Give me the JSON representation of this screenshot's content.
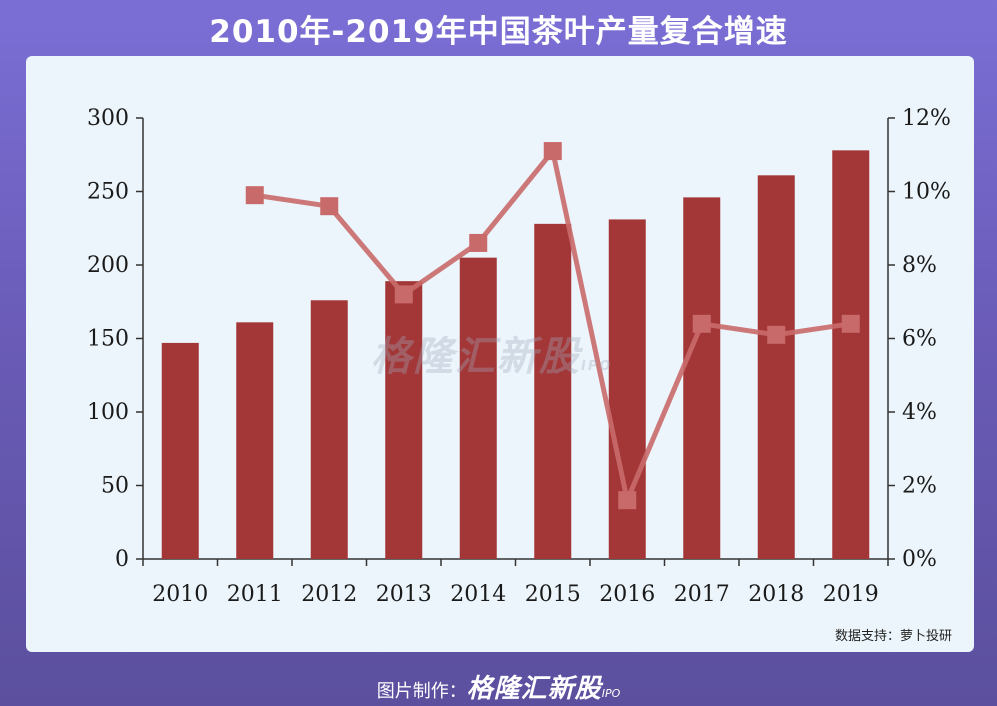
{
  "page_title": "2010年-2019年中国茶叶产量复合增速",
  "source_note": "数据支持：萝卜投研",
  "watermark": {
    "brand": "格隆汇新股",
    "suffix": "IPO"
  },
  "footer": {
    "label": "图片制作：",
    "brand": "格隆汇新股",
    "suffix": "IPO"
  },
  "colors": {
    "bar": "#a33636",
    "line": "#c96a6a"
  },
  "chart_data": {
    "type": "bar",
    "title": "",
    "categories": [
      "2010",
      "2011",
      "2012",
      "2013",
      "2014",
      "2015",
      "2016",
      "2017",
      "2018",
      "2019"
    ],
    "series": [
      {
        "values": [
          147,
          161,
          176,
          189,
          205,
          228,
          231,
          246,
          261,
          278
        ],
        "axis": "left",
        "type": "bar"
      },
      {
        "values": [
          null,
          9.9,
          9.6,
          7.2,
          8.6,
          11.1,
          1.6,
          6.4,
          6.1,
          6.4
        ],
        "axis": "right",
        "type": "line"
      }
    ],
    "y_left": {
      "ylim": [
        0,
        300
      ],
      "ticks": [
        "0",
        "50",
        "100",
        "150",
        "200",
        "250",
        "300"
      ]
    },
    "y_right": {
      "ylim": [
        0,
        12
      ],
      "ticks": [
        "0%",
        "2%",
        "4%",
        "6%",
        "8%",
        "10%",
        "12%"
      ]
    },
    "xlabel": "",
    "ylabel": "",
    "grid": false
  }
}
